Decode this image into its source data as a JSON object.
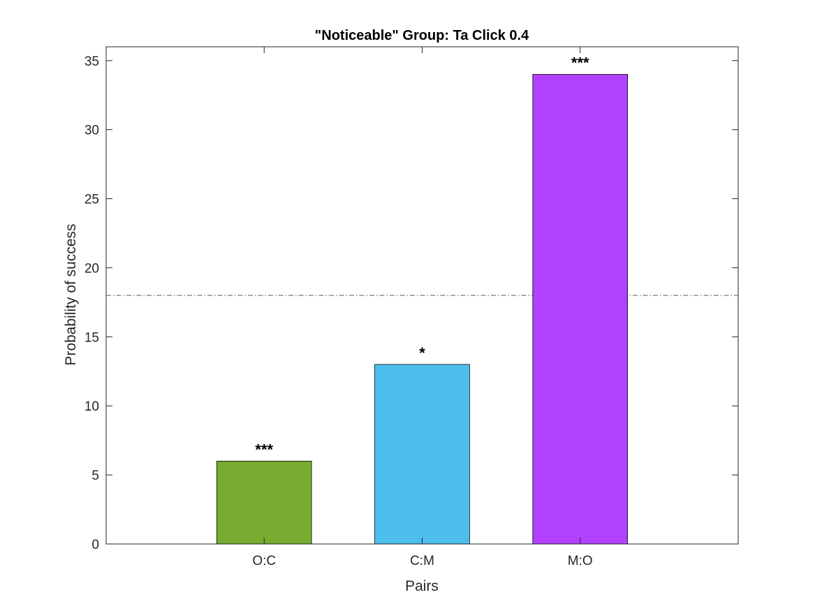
{
  "chart_data": {
    "type": "bar",
    "title": "\"Noticeable\" Group: Ta Click 0.4",
    "xlabel": "Pairs",
    "ylabel": "Probability of success",
    "categories": [
      "O:C",
      "C:M",
      "M:O"
    ],
    "values": [
      6,
      13,
      34
    ],
    "colors": [
      "#77AC30",
      "#4DBEEE",
      "#B240FF"
    ],
    "significance": [
      "***",
      "*",
      "***"
    ],
    "ylim": [
      0,
      36
    ],
    "yticks": [
      0,
      5,
      10,
      15,
      20,
      25,
      30,
      35
    ],
    "reference_line": 18,
    "grid": false,
    "legend": "none"
  }
}
